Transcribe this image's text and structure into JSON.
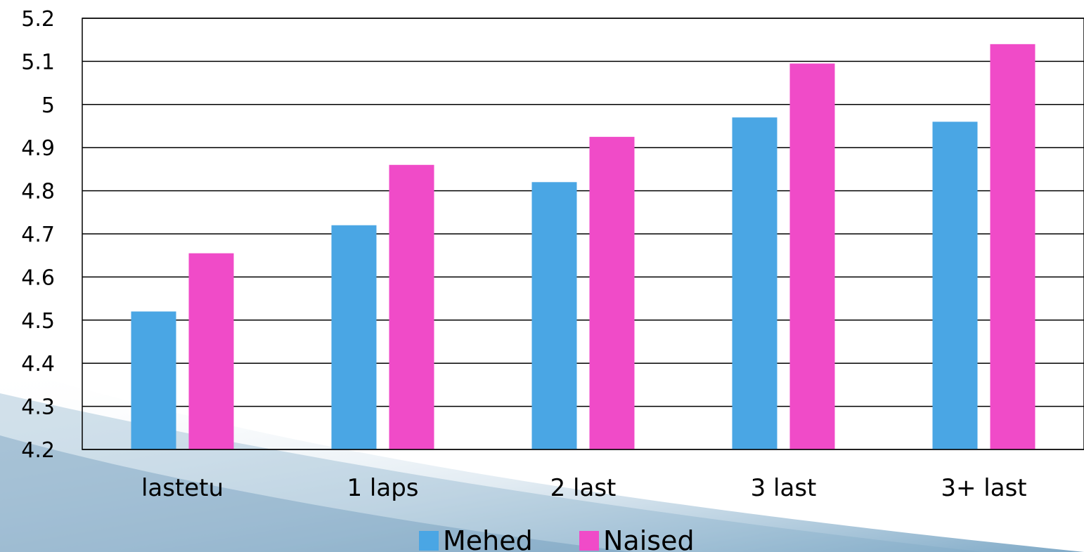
{
  "chart_data": {
    "type": "bar",
    "title": "",
    "xlabel": "",
    "ylabel": "",
    "categories": [
      "lastetu",
      "1 laps",
      "2 last",
      "3 last",
      "3+ last"
    ],
    "series": [
      {
        "name": "Mehed",
        "color": "#4aa6e4",
        "values": [
          4.52,
          4.72,
          4.82,
          4.97,
          4.96
        ]
      },
      {
        "name": "Naised",
        "color": "#f04bc8",
        "values": [
          4.655,
          4.86,
          4.925,
          5.095,
          5.14
        ]
      }
    ],
    "ylim": [
      4.2,
      5.2
    ],
    "yticks": [
      "4.2",
      "4.3",
      "4.4",
      "4.5",
      "4.6",
      "4.7",
      "4.8",
      "4.9",
      "5",
      "5.1",
      "5.2"
    ],
    "grid": true,
    "legend": "bottom-center"
  }
}
